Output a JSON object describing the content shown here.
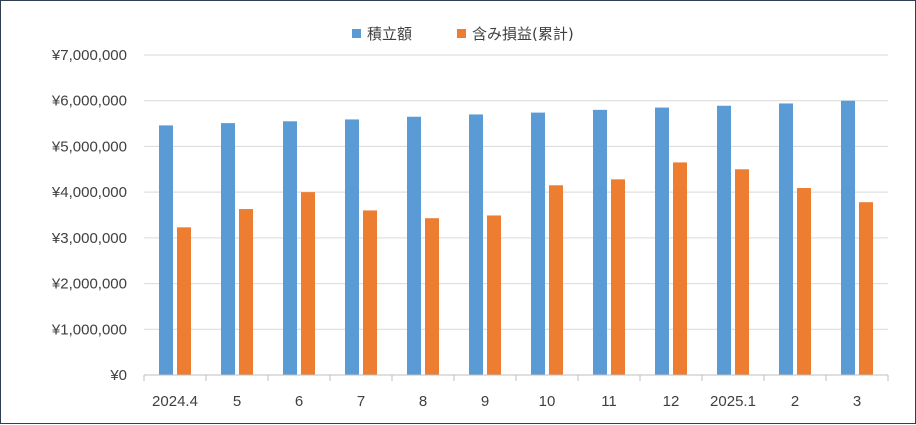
{
  "chart_data": {
    "type": "bar",
    "categories": [
      "2024.4",
      "5",
      "6",
      "7",
      "8",
      "9",
      "10",
      "11",
      "12",
      "2025.1",
      "2",
      "3"
    ],
    "series": [
      {
        "name": "積立額",
        "color": "#5b9bd5",
        "values": [
          5460000,
          5510000,
          5550000,
          5590000,
          5650000,
          5700000,
          5740000,
          5800000,
          5850000,
          5890000,
          5940000,
          6000000
        ]
      },
      {
        "name": "含み損益(累計)",
        "color": "#ed7d31",
        "values": [
          3230000,
          3630000,
          4000000,
          3600000,
          3430000,
          3490000,
          4150000,
          4280000,
          4650000,
          4500000,
          4090000,
          3780000
        ]
      }
    ],
    "ylim": [
      0,
      7000000
    ],
    "yticks": [
      0,
      1000000,
      2000000,
      3000000,
      4000000,
      5000000,
      6000000,
      7000000
    ],
    "ytick_labels": [
      "¥0",
      "¥1,000,000",
      "¥2,000,000",
      "¥3,000,000",
      "¥4,000,000",
      "¥5,000,000",
      "¥6,000,000",
      "¥7,000,000"
    ],
    "grid": true,
    "legend": "top-center"
  }
}
